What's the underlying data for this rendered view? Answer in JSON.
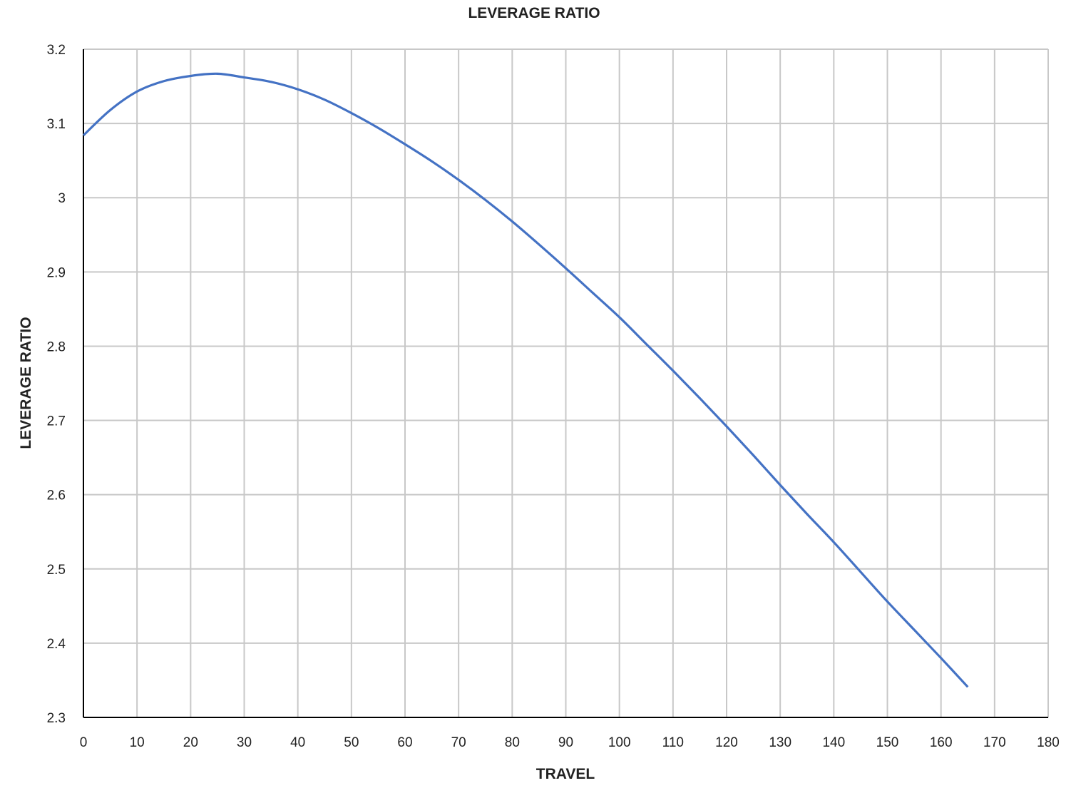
{
  "chart_data": {
    "type": "line",
    "title": "LEVERAGE RATIO",
    "xlabel": "TRAVEL",
    "ylabel": "LEVERAGE RATIO",
    "xlim": [
      0,
      180
    ],
    "ylim": [
      2.3,
      3.2
    ],
    "xticks": [
      0,
      10,
      20,
      30,
      40,
      50,
      60,
      70,
      80,
      90,
      100,
      110,
      120,
      130,
      140,
      150,
      160,
      170,
      180
    ],
    "yticks": [
      2.3,
      2.4,
      2.5,
      2.6,
      2.7,
      2.8,
      2.9,
      3,
      3.1,
      3.2
    ],
    "ytick_labels": [
      "2.3",
      "2.4",
      "2.5",
      "2.6",
      "2.7",
      "2.8",
      "2.9",
      "3",
      "3.1",
      "3.2"
    ],
    "grid": true,
    "legend": "none",
    "series": [
      {
        "color": "#4472C4",
        "x": [
          0,
          5,
          10,
          15,
          20,
          25,
          30,
          35,
          40,
          45,
          50,
          55,
          60,
          65,
          70,
          75,
          80,
          85,
          90,
          95,
          100,
          105,
          110,
          115,
          120,
          125,
          130,
          135,
          140,
          145,
          150,
          155,
          160,
          165
        ],
        "y": [
          3.084,
          3.118,
          3.143,
          3.157,
          3.164,
          3.167,
          3.162,
          3.156,
          3.146,
          3.132,
          3.114,
          3.094,
          3.072,
          3.049,
          3.024,
          2.997,
          2.968,
          2.937,
          2.905,
          2.872,
          2.839,
          2.803,
          2.767,
          2.73,
          2.692,
          2.653,
          2.613,
          2.574,
          2.536,
          2.496,
          2.456,
          2.418,
          2.38,
          2.341
        ]
      }
    ]
  }
}
